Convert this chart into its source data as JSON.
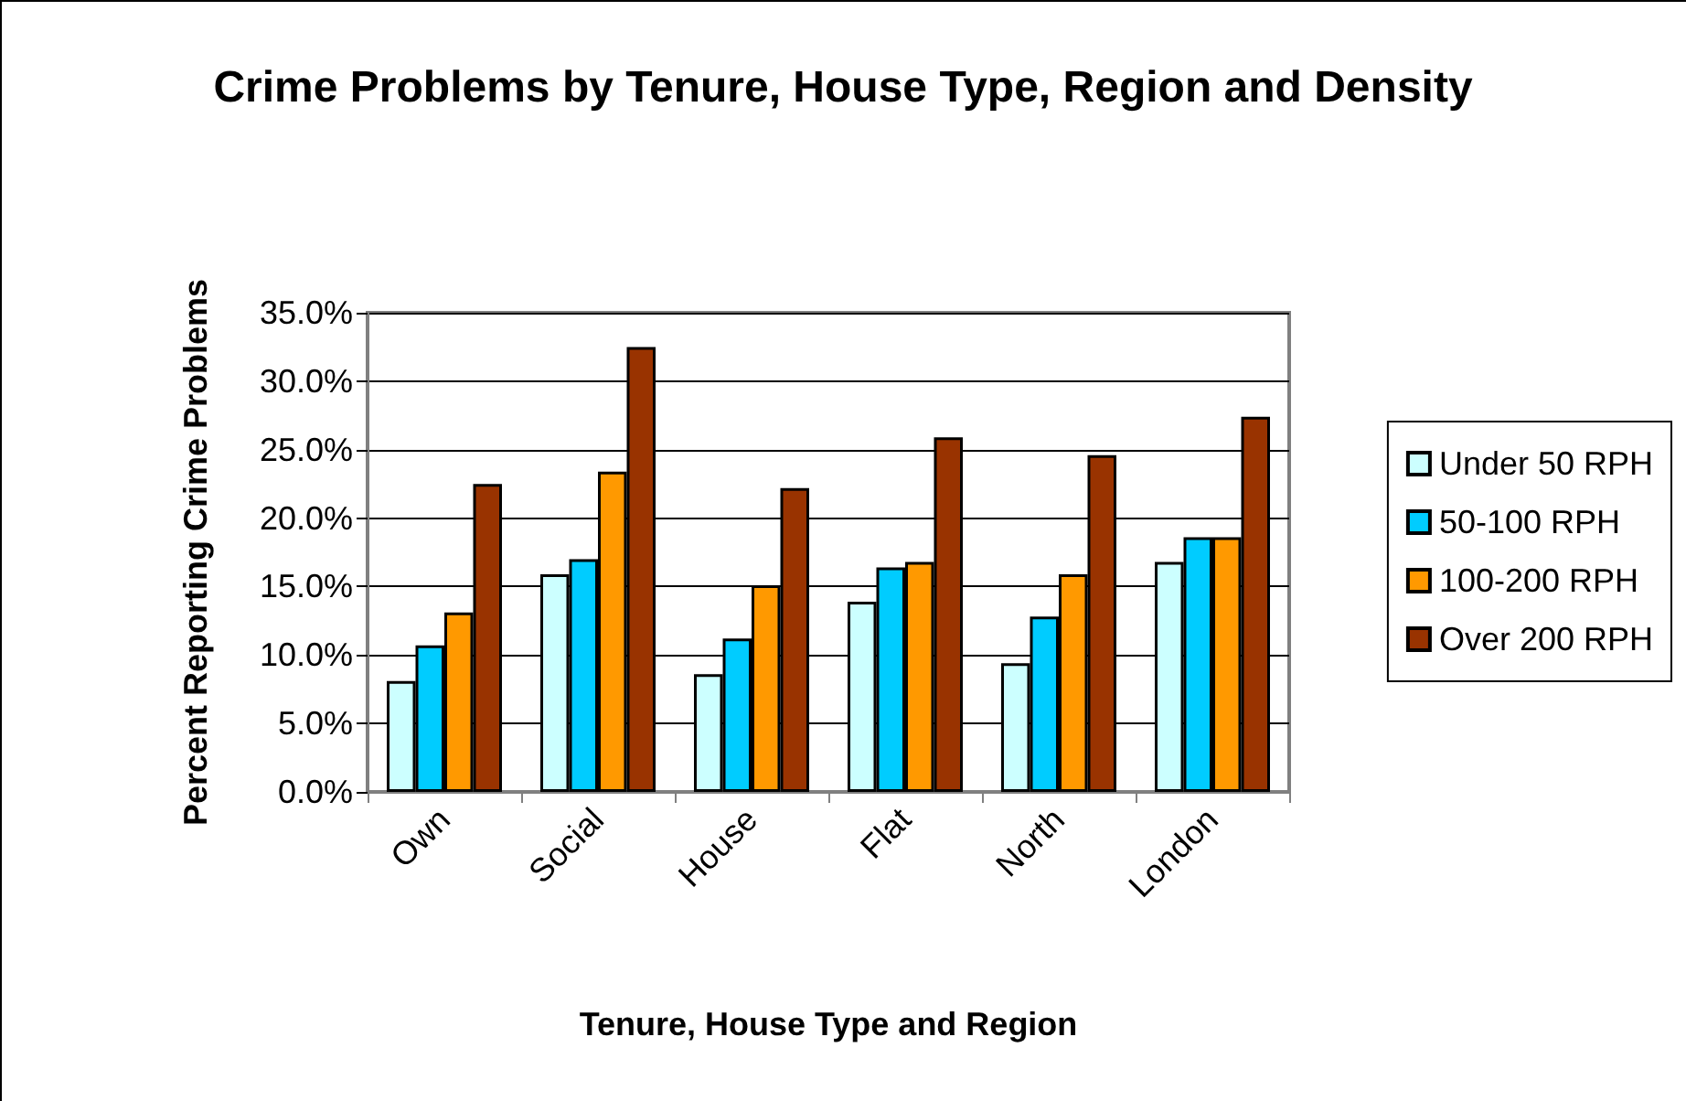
{
  "chart_data": {
    "type": "bar",
    "title": "Crime Problems by Tenure, House Type, Region and Density",
    "xlabel": "Tenure, House Type and Region",
    "ylabel": "Percent Reporting Crime Problems",
    "categories": [
      "Own",
      "Social",
      "House",
      "Flat",
      "North",
      "London"
    ],
    "series": [
      {
        "name": "Under 50 RPH",
        "color": "#ccffff",
        "values": [
          8.1,
          15.9,
          8.6,
          13.9,
          9.4,
          16.8
        ]
      },
      {
        "name": "50-100 RPH",
        "color": "#00ccff",
        "values": [
          10.7,
          17.0,
          11.2,
          16.4,
          12.8,
          18.6
        ]
      },
      {
        "name": "100-200 RPH",
        "color": "#ff9900",
        "values": [
          13.1,
          23.4,
          15.1,
          16.8,
          15.9,
          18.6
        ]
      },
      {
        "name": "Over 200 RPH",
        "color": "#993300",
        "values": [
          22.5,
          32.5,
          22.2,
          25.9,
          24.6,
          27.4
        ]
      }
    ],
    "ylim": [
      0,
      35
    ],
    "yticks": [
      {
        "value": 0,
        "label": "0.0%"
      },
      {
        "value": 5,
        "label": "5.0%"
      },
      {
        "value": 10,
        "label": "10.0%"
      },
      {
        "value": 15,
        "label": "15.0%"
      },
      {
        "value": 20,
        "label": "20.0%"
      },
      {
        "value": 25,
        "label": "25.0%"
      },
      {
        "value": 30,
        "label": "30.0%"
      },
      {
        "value": 35,
        "label": "35.0%"
      }
    ],
    "grid": "y",
    "legend": "right"
  }
}
